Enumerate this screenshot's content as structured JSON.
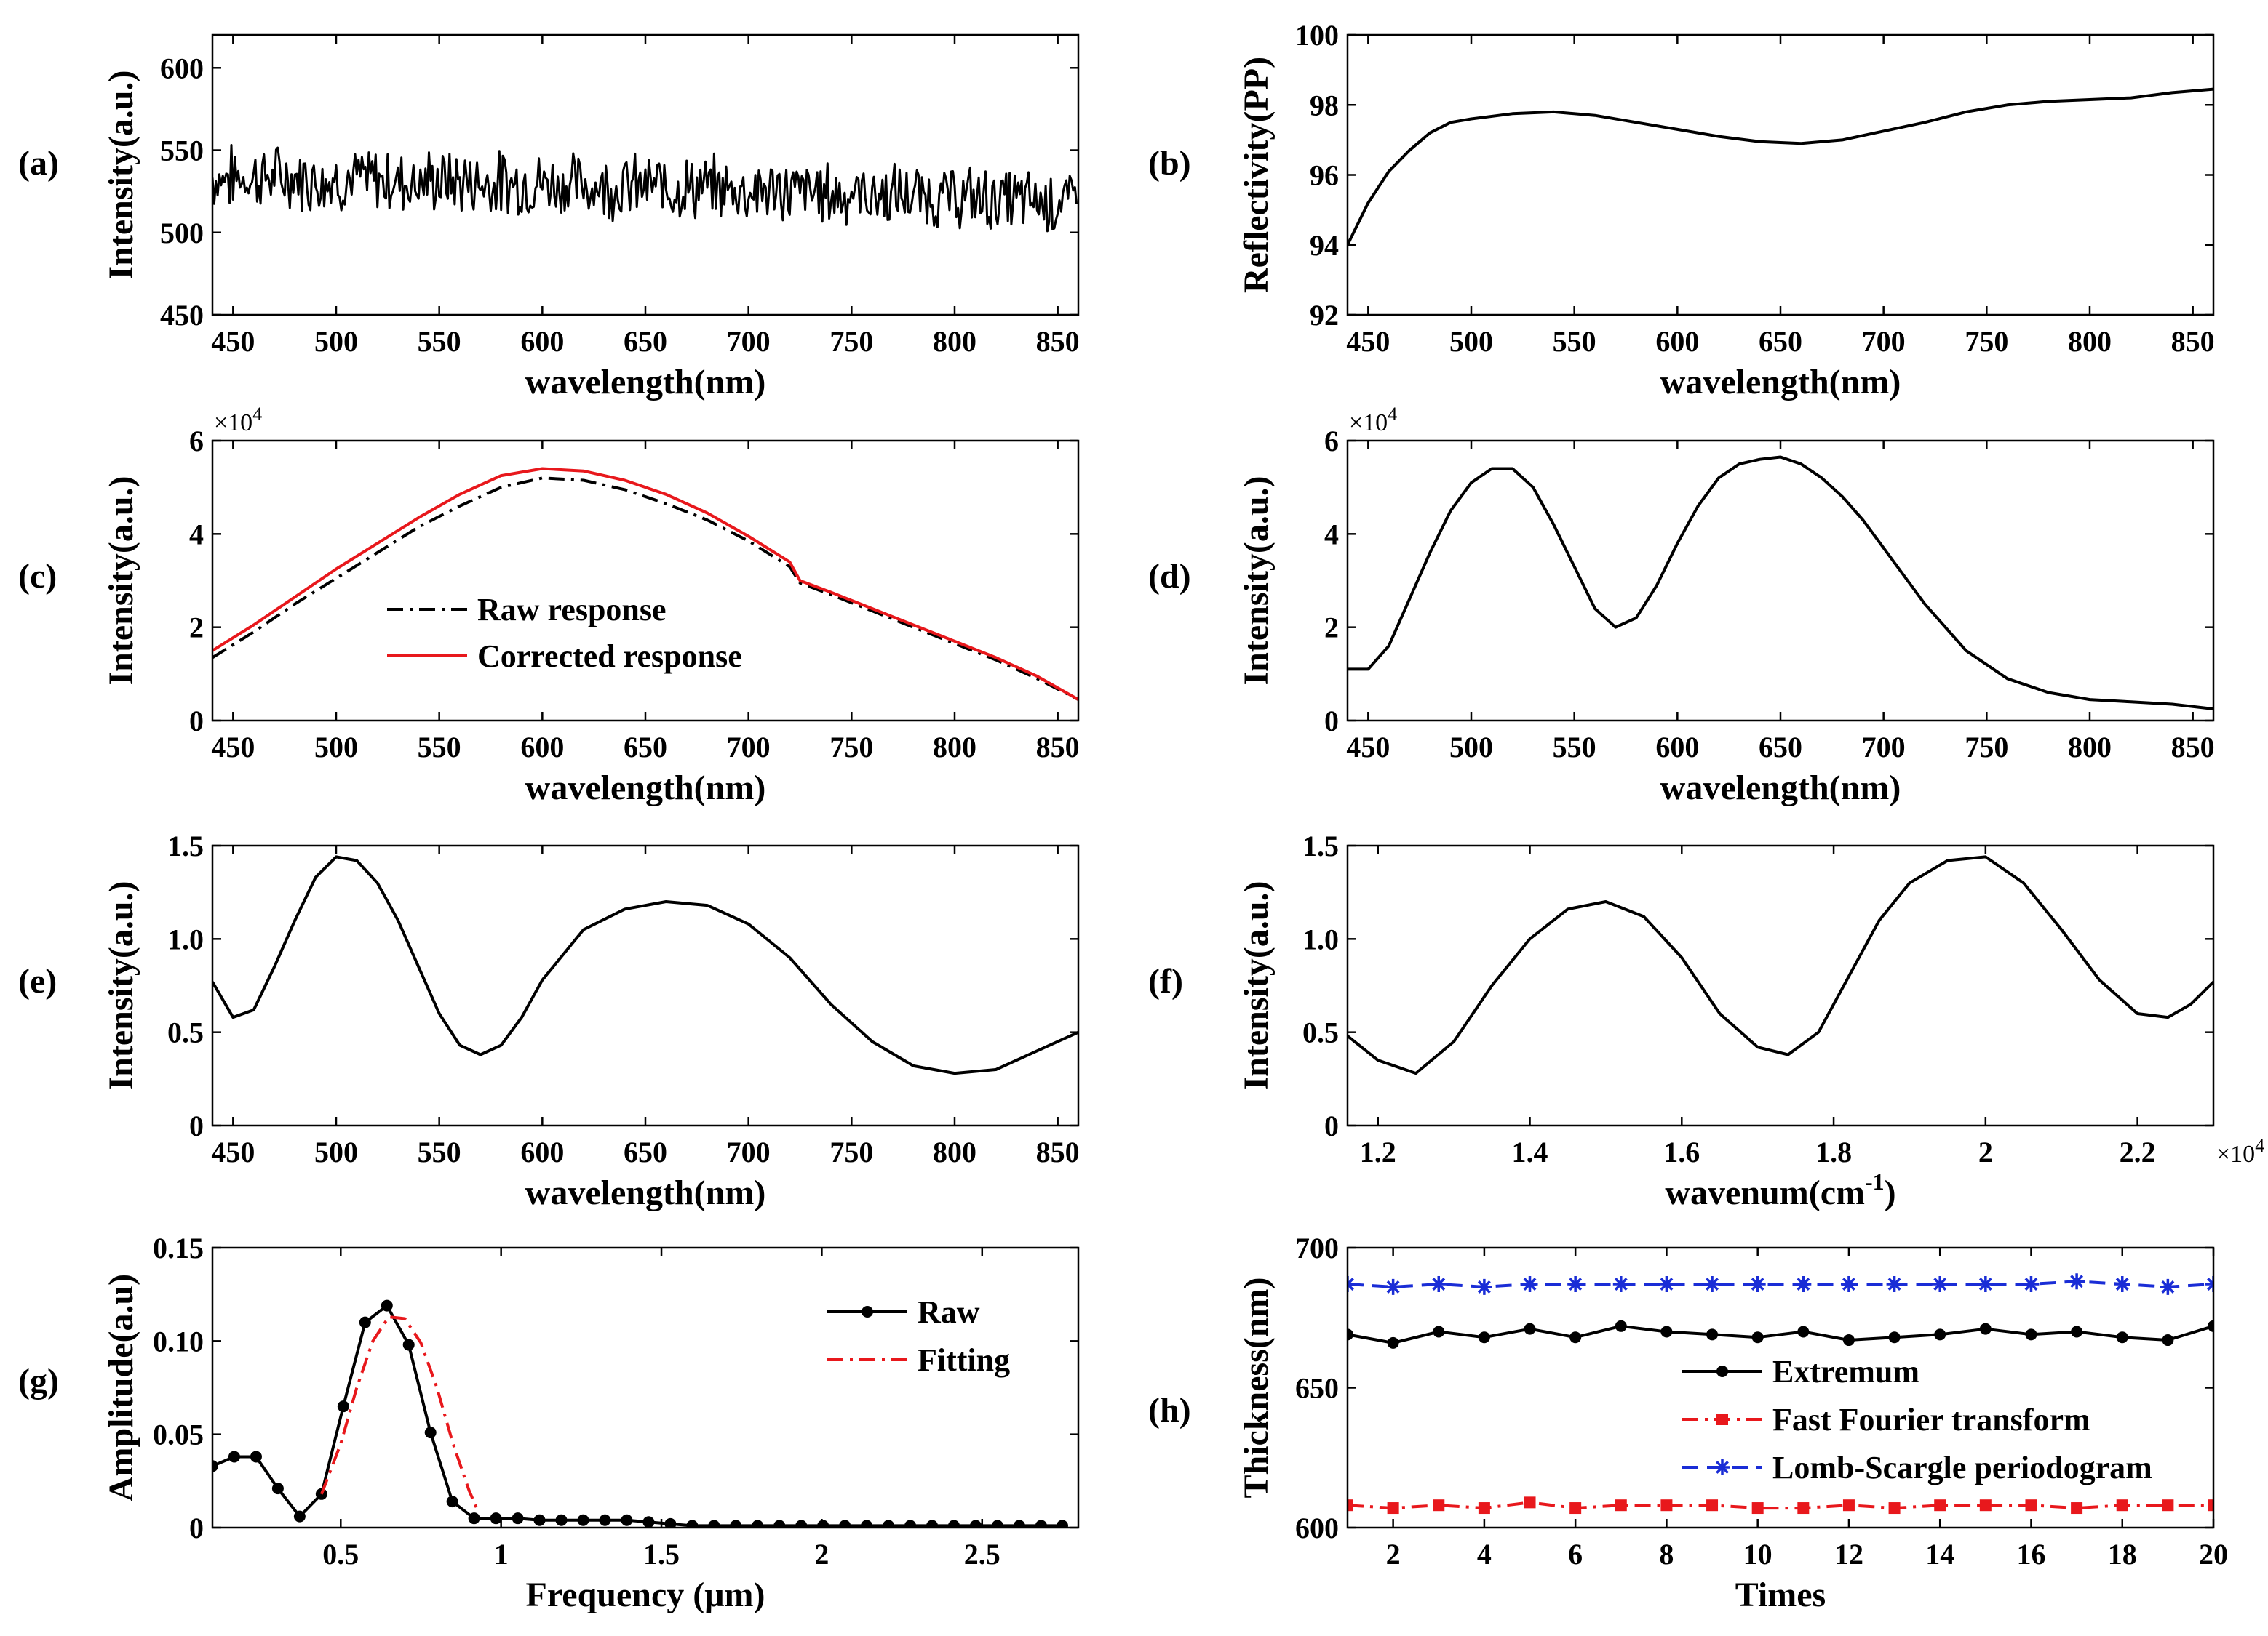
{
  "chart_data": [
    {
      "id": "a",
      "panel_label": "(a)",
      "type": "line",
      "xlabel": "wavelength(nm)",
      "ylabel": "Intensity(a.u.)",
      "xlim": [
        440,
        860
      ],
      "ylim": [
        450,
        620
      ],
      "xticks": [
        450,
        500,
        550,
        600,
        650,
        700,
        750,
        800,
        850
      ],
      "xtick_labels": [
        "450",
        "500",
        "550",
        "600",
        "650",
        "700",
        "750",
        "800",
        "850"
      ],
      "yticks": [
        450,
        500,
        550,
        600
      ],
      "ytick_labels": [
        "450",
        "500",
        "550",
        "600"
      ],
      "series": [
        {
          "color": "#000000",
          "style": "solid",
          "x": [
            440,
            460,
            480,
            500,
            520,
            540,
            560,
            580,
            600,
            620,
            640,
            660,
            680,
            700,
            720,
            740,
            760,
            780,
            800,
            820,
            840,
            860
          ],
          "y": [
            533,
            534,
            533,
            532,
            532,
            531,
            531,
            530,
            530,
            529,
            528,
            528,
            527,
            526,
            525,
            524,
            523,
            522,
            521,
            520,
            519,
            518
          ]
        }
      ]
    },
    {
      "id": "b",
      "panel_label": "(b)",
      "type": "line",
      "xlabel": "wavelength(nm)",
      "ylabel": "Reflectivity(PP)",
      "xlim": [
        440,
        860
      ],
      "ylim": [
        92,
        100
      ],
      "xticks": [
        450,
        500,
        550,
        600,
        650,
        700,
        750,
        800,
        850
      ],
      "xtick_labels": [
        "450",
        "500",
        "550",
        "600",
        "650",
        "700",
        "750",
        "800",
        "850"
      ],
      "yticks": [
        92,
        94,
        96,
        98,
        100
      ],
      "ytick_labels": [
        "92",
        "94",
        "96",
        "98",
        "100"
      ],
      "series": [
        {
          "color": "#000000",
          "style": "solid",
          "x": [
            440,
            450,
            460,
            470,
            480,
            490,
            500,
            520,
            540,
            560,
            580,
            600,
            620,
            640,
            660,
            680,
            700,
            720,
            740,
            760,
            780,
            800,
            820,
            840,
            860
          ],
          "y": [
            94.0,
            95.2,
            96.1,
            96.7,
            97.2,
            97.5,
            97.6,
            97.75,
            97.8,
            97.7,
            97.5,
            97.3,
            97.1,
            96.95,
            96.9,
            97.0,
            97.25,
            97.5,
            97.8,
            98.0,
            98.1,
            98.15,
            98.2,
            98.35,
            98.45
          ]
        }
      ]
    },
    {
      "id": "c",
      "panel_label": "(c)",
      "type": "line",
      "xlabel": "wavelength(nm)",
      "ylabel": "Intensity(a.u.)",
      "y_multiplier": "×10",
      "y_multiplier_exp": "4",
      "xlim": [
        440,
        860
      ],
      "ylim": [
        0,
        6
      ],
      "xticks": [
        450,
        500,
        550,
        600,
        650,
        700,
        750,
        800,
        850
      ],
      "xtick_labels": [
        "450",
        "500",
        "550",
        "600",
        "650",
        "700",
        "750",
        "800",
        "850"
      ],
      "yticks": [
        0,
        2,
        4,
        6
      ],
      "ytick_labels": [
        "0",
        "2",
        "4",
        "6"
      ],
      "legend": "center-left",
      "series": [
        {
          "name": "Raw response",
          "color": "#000000",
          "style": "dashdot",
          "x": [
            440,
            460,
            480,
            500,
            520,
            540,
            560,
            580,
            600,
            620,
            640,
            660,
            680,
            700,
            720,
            725,
            740,
            760,
            780,
            800,
            820,
            840,
            860
          ],
          "y": [
            1.35,
            1.9,
            2.5,
            3.05,
            3.6,
            4.15,
            4.6,
            5.0,
            5.2,
            5.15,
            4.95,
            4.65,
            4.3,
            3.85,
            3.3,
            2.95,
            2.7,
            2.35,
            2.0,
            1.65,
            1.3,
            0.9,
            0.45
          ]
        },
        {
          "name": "Corrected response",
          "color": "#e8181c",
          "style": "solid",
          "x": [
            440,
            460,
            480,
            500,
            520,
            540,
            560,
            580,
            600,
            620,
            640,
            660,
            680,
            700,
            720,
            725,
            740,
            760,
            780,
            800,
            820,
            840,
            860
          ],
          "y": [
            1.5,
            2.05,
            2.65,
            3.25,
            3.8,
            4.35,
            4.85,
            5.25,
            5.4,
            5.35,
            5.15,
            4.85,
            4.45,
            3.95,
            3.4,
            3.0,
            2.75,
            2.4,
            2.05,
            1.7,
            1.35,
            0.95,
            0.45
          ]
        }
      ]
    },
    {
      "id": "d",
      "panel_label": "(d)",
      "type": "line",
      "xlabel": "wavelength(nm)",
      "ylabel": "Intensity(a.u.)",
      "y_multiplier": "×10",
      "y_multiplier_exp": "4",
      "xlim": [
        440,
        860
      ],
      "ylim": [
        0,
        6
      ],
      "xticks": [
        450,
        500,
        550,
        600,
        650,
        700,
        750,
        800,
        850
      ],
      "xtick_labels": [
        "450",
        "500",
        "550",
        "600",
        "650",
        "700",
        "750",
        "800",
        "850"
      ],
      "yticks": [
        0,
        2,
        4,
        6
      ],
      "ytick_labels": [
        "0",
        "2",
        "4",
        "6"
      ],
      "series": [
        {
          "color": "#000000",
          "style": "solid",
          "x": [
            440,
            450,
            460,
            470,
            480,
            490,
            500,
            510,
            520,
            530,
            540,
            550,
            560,
            570,
            580,
            590,
            600,
            610,
            620,
            630,
            640,
            650,
            660,
            670,
            680,
            690,
            700,
            720,
            740,
            760,
            780,
            800,
            820,
            840,
            860
          ],
          "y": [
            1.1,
            1.1,
            1.6,
            2.6,
            3.6,
            4.5,
            5.1,
            5.4,
            5.4,
            5.0,
            4.2,
            3.3,
            2.4,
            2.0,
            2.2,
            2.9,
            3.8,
            4.6,
            5.2,
            5.5,
            5.6,
            5.65,
            5.5,
            5.2,
            4.8,
            4.3,
            3.7,
            2.5,
            1.5,
            0.9,
            0.6,
            0.45,
            0.4,
            0.35,
            0.25
          ]
        }
      ]
    },
    {
      "id": "e",
      "panel_label": "(e)",
      "type": "line",
      "xlabel": "wavelength(nm)",
      "ylabel": "Intensity(a.u.)",
      "xlim": [
        440,
        860
      ],
      "ylim": [
        0,
        1.5
      ],
      "xticks": [
        450,
        500,
        550,
        600,
        650,
        700,
        750,
        800,
        850
      ],
      "xtick_labels": [
        "450",
        "500",
        "550",
        "600",
        "650",
        "700",
        "750",
        "800",
        "850"
      ],
      "yticks": [
        0,
        0.5,
        1.0,
        1.5
      ],
      "ytick_labels": [
        "0",
        "0.5",
        "1.0",
        "1.5"
      ],
      "series": [
        {
          "color": "#000000",
          "style": "solid",
          "x": [
            440,
            450,
            460,
            470,
            480,
            490,
            500,
            510,
            520,
            530,
            540,
            550,
            560,
            570,
            580,
            590,
            600,
            620,
            640,
            660,
            680,
            700,
            720,
            740,
            760,
            780,
            800,
            820,
            840,
            860
          ],
          "y": [
            0.77,
            0.58,
            0.62,
            0.85,
            1.1,
            1.33,
            1.44,
            1.42,
            1.3,
            1.1,
            0.85,
            0.6,
            0.43,
            0.38,
            0.43,
            0.58,
            0.78,
            1.05,
            1.16,
            1.2,
            1.18,
            1.08,
            0.9,
            0.65,
            0.45,
            0.32,
            0.28,
            0.3,
            0.4,
            0.5
          ]
        }
      ]
    },
    {
      "id": "f",
      "panel_label": "(f)",
      "type": "line",
      "xlabel": "wavenum(cm",
      "xlabel_sup": "-1",
      "xlabel_tail": ")",
      "ylabel": "Intensity(a.u.)",
      "x_multiplier": "×10",
      "x_multiplier_exp": "4",
      "xlim": [
        1.16,
        2.3
      ],
      "ylim": [
        0,
        1.5
      ],
      "xticks": [
        1.2,
        1.4,
        1.6,
        1.8,
        2.0,
        2.2
      ],
      "xtick_labels": [
        "1.2",
        "1.4",
        "1.6",
        "1.8",
        "2",
        "2.2"
      ],
      "yticks": [
        0,
        0.5,
        1.0,
        1.5
      ],
      "ytick_labels": [
        "0",
        "0.5",
        "1.0",
        "1.5"
      ],
      "series": [
        {
          "color": "#000000",
          "style": "solid",
          "x": [
            1.16,
            1.2,
            1.25,
            1.3,
            1.35,
            1.4,
            1.45,
            1.5,
            1.55,
            1.6,
            1.65,
            1.7,
            1.74,
            1.78,
            1.82,
            1.86,
            1.9,
            1.95,
            2.0,
            2.05,
            2.1,
            2.15,
            2.2,
            2.24,
            2.27,
            2.3
          ],
          "y": [
            0.48,
            0.35,
            0.28,
            0.45,
            0.75,
            1.0,
            1.16,
            1.2,
            1.12,
            0.9,
            0.6,
            0.42,
            0.38,
            0.5,
            0.8,
            1.1,
            1.3,
            1.42,
            1.44,
            1.3,
            1.05,
            0.78,
            0.6,
            0.58,
            0.65,
            0.77
          ]
        }
      ]
    },
    {
      "id": "g",
      "panel_label": "(g)",
      "type": "line",
      "xlabel": "Frequency (μm)",
      "ylabel": "Amplitude(a.u)",
      "xlim": [
        0.1,
        2.8
      ],
      "ylim": [
        0,
        0.15
      ],
      "xticks": [
        0.5,
        1,
        1.5,
        2,
        2.5
      ],
      "xtick_labels": [
        "0.5",
        "1",
        "1.5",
        "2",
        "2.5"
      ],
      "yticks": [
        0,
        0.05,
        0.1,
        0.15
      ],
      "ytick_labels": [
        "0",
        "0.05",
        "0.10",
        "0.15"
      ],
      "legend": "top-right",
      "series": [
        {
          "name": "Raw",
          "color": "#000000",
          "style": "solid",
          "marker": "circle",
          "x": [
            0.1,
            0.168,
            0.236,
            0.304,
            0.372,
            0.44,
            0.508,
            0.576,
            0.644,
            0.712,
            0.78,
            0.848,
            0.916,
            0.984,
            1.052,
            1.12,
            1.188,
            1.256,
            1.324,
            1.392,
            1.46,
            1.528,
            1.596,
            1.664,
            1.732,
            1.8,
            1.868,
            1.936,
            2.004,
            2.072,
            2.14,
            2.208,
            2.276,
            2.344,
            2.412,
            2.48,
            2.548,
            2.616,
            2.684,
            2.75
          ],
          "y": [
            0.033,
            0.038,
            0.038,
            0.021,
            0.006,
            0.018,
            0.065,
            0.11,
            0.119,
            0.098,
            0.051,
            0.014,
            0.005,
            0.005,
            0.005,
            0.004,
            0.004,
            0.004,
            0.004,
            0.004,
            0.003,
            0.002,
            0.001,
            0.001,
            0.001,
            0.001,
            0.001,
            0.001,
            0.001,
            0.001,
            0.001,
            0.001,
            0.001,
            0.001,
            0.001,
            0.001,
            0.001,
            0.001,
            0.001,
            0.001
          ]
        },
        {
          "name": "Fitting",
          "color": "#e8181c",
          "style": "dashdot",
          "x": [
            0.44,
            0.5,
            0.55,
            0.6,
            0.65,
            0.7,
            0.75,
            0.8,
            0.85,
            0.9,
            0.93
          ],
          "y": [
            0.018,
            0.045,
            0.075,
            0.1,
            0.113,
            0.112,
            0.099,
            0.075,
            0.045,
            0.02,
            0.008
          ]
        }
      ]
    },
    {
      "id": "h",
      "panel_label": "(h)",
      "type": "line",
      "xlabel": "Times",
      "ylabel": "Thickness(nm)",
      "xlim": [
        1,
        20
      ],
      "ylim": [
        600,
        700
      ],
      "xticks": [
        2,
        4,
        6,
        8,
        10,
        12,
        14,
        16,
        18,
        20
      ],
      "xtick_labels": [
        "2",
        "4",
        "6",
        "8",
        "10",
        "12",
        "14",
        "16",
        "18",
        "20"
      ],
      "yticks": [
        600,
        650,
        700
      ],
      "ytick_labels": [
        "600",
        "650",
        "700"
      ],
      "legend": "center-right",
      "series": [
        {
          "name": "Extremum",
          "color": "#000000",
          "style": "solid",
          "marker": "circle",
          "x": [
            1,
            2,
            3,
            4,
            5,
            6,
            7,
            8,
            9,
            10,
            11,
            12,
            13,
            14,
            15,
            16,
            17,
            18,
            19,
            20
          ],
          "y": [
            669,
            666,
            670,
            668,
            671,
            668,
            672,
            670,
            669,
            668,
            670,
            667,
            668,
            669,
            671,
            669,
            670,
            668,
            667,
            672
          ]
        },
        {
          "name": "Fast Fourier transform",
          "color": "#e8181c",
          "style": "dashdot",
          "marker": "square",
          "x": [
            1,
            2,
            3,
            4,
            5,
            6,
            7,
            8,
            9,
            10,
            11,
            12,
            13,
            14,
            15,
            16,
            17,
            18,
            19,
            20
          ],
          "y": [
            608,
            607,
            608,
            607,
            609,
            607,
            608,
            608,
            608,
            607,
            607,
            608,
            607,
            608,
            608,
            608,
            607,
            608,
            608,
            608
          ]
        },
        {
          "name": "Lomb-Scargle periodogram",
          "color": "#1a2dd6",
          "style": "dashed",
          "marker": "star",
          "x": [
            1,
            2,
            3,
            4,
            5,
            6,
            7,
            8,
            9,
            10,
            11,
            12,
            13,
            14,
            15,
            16,
            17,
            18,
            19,
            20
          ],
          "y": [
            687,
            686,
            687,
            686,
            687,
            687,
            687,
            687,
            687,
            687,
            687,
            687,
            687,
            687,
            687,
            687,
            688,
            687,
            686,
            687
          ]
        }
      ]
    }
  ]
}
